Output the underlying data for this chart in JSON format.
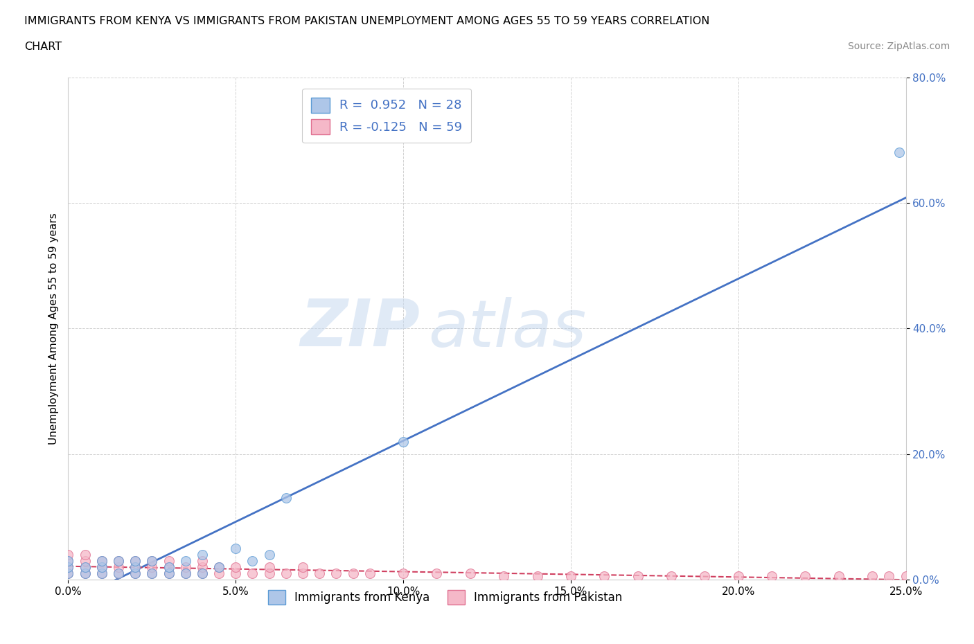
{
  "title_line1": "IMMIGRANTS FROM KENYA VS IMMIGRANTS FROM PAKISTAN UNEMPLOYMENT AMONG AGES 55 TO 59 YEARS CORRELATION",
  "title_line2": "CHART",
  "source": "Source: ZipAtlas.com",
  "ylabel": "Unemployment Among Ages 55 to 59 years",
  "xlim": [
    0.0,
    0.25
  ],
  "ylim": [
    0.0,
    0.8
  ],
  "xticks": [
    0.0,
    0.05,
    0.1,
    0.15,
    0.2,
    0.25
  ],
  "yticks": [
    0.0,
    0.2,
    0.4,
    0.6,
    0.8
  ],
  "xtick_labels": [
    "0.0%",
    "5.0%",
    "10.0%",
    "15.0%",
    "20.0%",
    "25.0%"
  ],
  "ytick_labels": [
    "0.0%",
    "20.0%",
    "40.0%",
    "60.0%",
    "80.0%"
  ],
  "kenya_color": "#aec6e8",
  "kenya_edge_color": "#5b9bd5",
  "pakistan_color": "#f5b8c8",
  "pakistan_edge_color": "#e07090",
  "kenya_line_color": "#4472c4",
  "pakistan_line_color": "#d04060",
  "kenya_R": 0.952,
  "kenya_N": 28,
  "pakistan_R": -0.125,
  "pakistan_N": 59,
  "kenya_scatter_x": [
    0.0,
    0.0,
    0.0,
    0.005,
    0.005,
    0.01,
    0.01,
    0.01,
    0.015,
    0.015,
    0.02,
    0.02,
    0.02,
    0.025,
    0.025,
    0.03,
    0.03,
    0.035,
    0.035,
    0.04,
    0.04,
    0.045,
    0.05,
    0.055,
    0.06,
    0.065,
    0.1,
    0.248
  ],
  "kenya_scatter_y": [
    0.01,
    0.02,
    0.03,
    0.01,
    0.02,
    0.01,
    0.02,
    0.03,
    0.01,
    0.03,
    0.01,
    0.02,
    0.03,
    0.01,
    0.03,
    0.01,
    0.02,
    0.01,
    0.03,
    0.01,
    0.04,
    0.02,
    0.05,
    0.03,
    0.04,
    0.13,
    0.22,
    0.68
  ],
  "pakistan_scatter_x": [
    0.0,
    0.0,
    0.0,
    0.0,
    0.005,
    0.005,
    0.005,
    0.005,
    0.01,
    0.01,
    0.01,
    0.015,
    0.015,
    0.015,
    0.02,
    0.02,
    0.02,
    0.025,
    0.025,
    0.025,
    0.03,
    0.03,
    0.03,
    0.035,
    0.035,
    0.04,
    0.04,
    0.04,
    0.045,
    0.045,
    0.05,
    0.05,
    0.055,
    0.06,
    0.06,
    0.065,
    0.07,
    0.07,
    0.075,
    0.08,
    0.085,
    0.09,
    0.1,
    0.11,
    0.12,
    0.13,
    0.14,
    0.15,
    0.16,
    0.17,
    0.18,
    0.19,
    0.2,
    0.21,
    0.22,
    0.23,
    0.24,
    0.245,
    0.25
  ],
  "pakistan_scatter_y": [
    0.01,
    0.02,
    0.03,
    0.04,
    0.01,
    0.02,
    0.03,
    0.04,
    0.01,
    0.02,
    0.03,
    0.01,
    0.02,
    0.03,
    0.01,
    0.02,
    0.03,
    0.01,
    0.02,
    0.03,
    0.01,
    0.02,
    0.03,
    0.01,
    0.02,
    0.01,
    0.02,
    0.03,
    0.01,
    0.02,
    0.01,
    0.02,
    0.01,
    0.01,
    0.02,
    0.01,
    0.01,
    0.02,
    0.01,
    0.01,
    0.01,
    0.01,
    0.01,
    0.01,
    0.01,
    0.005,
    0.005,
    0.005,
    0.005,
    0.005,
    0.005,
    0.005,
    0.005,
    0.005,
    0.005,
    0.005,
    0.005,
    0.005,
    0.005
  ],
  "watermark_zip": "ZIP",
  "watermark_atlas": "atlas",
  "legend_kenya": "Immigrants from Kenya",
  "legend_pakistan": "Immigrants from Pakistan",
  "background_color": "#ffffff",
  "grid_color": "#cccccc"
}
